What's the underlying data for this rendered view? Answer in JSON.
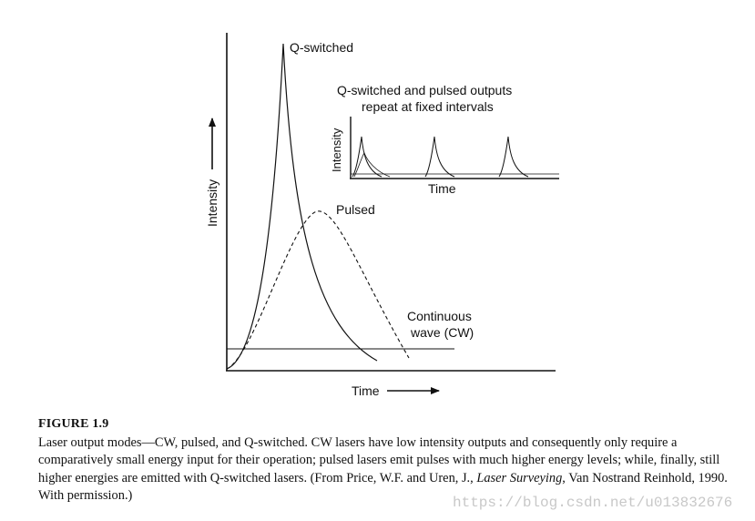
{
  "figure": {
    "main_labels": {
      "y_axis": "Intensity",
      "x_axis": "Time",
      "qswitched": "Q-switched",
      "pulsed": "Pulsed",
      "cw_line1": "Continuous",
      "cw_line2": "wave (CW)"
    },
    "inset": {
      "title_line1": "Q-switched and pulsed outputs",
      "title_line2": "repeat at fixed intervals",
      "y_axis": "Intensity",
      "x_axis": "Time"
    }
  },
  "caption": {
    "title": "FIGURE 1.9",
    "text_before": "Laser output modes—CW, pulsed, and Q-switched. CW lasers have low intensity outputs and consequently only require a comparatively small energy input for their operation; pulsed lasers emit pulses with much higher energy levels; while, finally, still higher energies are emitted with Q-switched lasers. (From Price, W.F. and Uren, J., ",
    "book": "Laser Surveying",
    "text_after": ", Van Nostrand Reinhold, 1990. With permission.)"
  },
  "watermark": "https://blog.csdn.net/u013832676"
}
